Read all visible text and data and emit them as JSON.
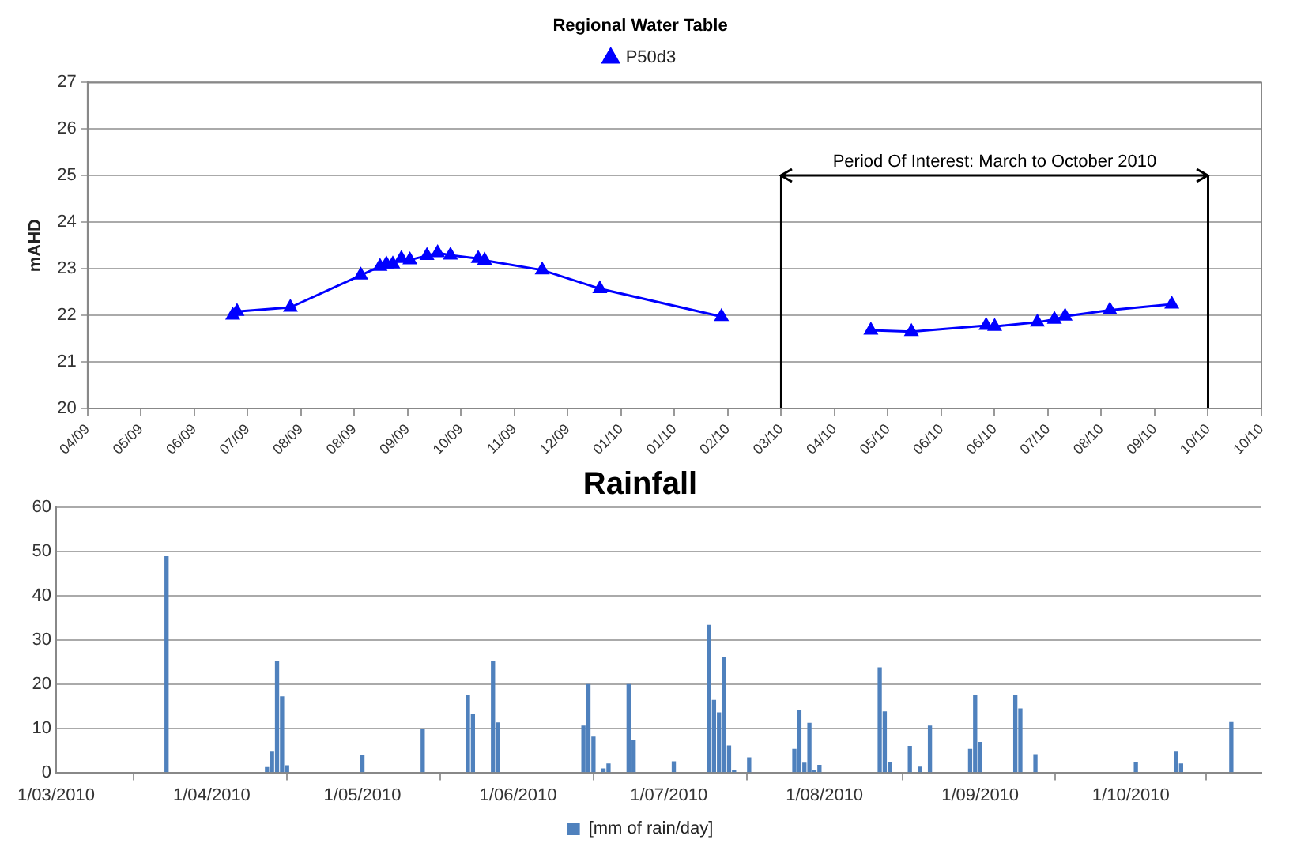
{
  "chart_data": [
    {
      "type": "line",
      "title": "Regional Water Table",
      "ylabel": "mAHD",
      "legend": "top",
      "grid": "y",
      "marker": "triangle",
      "line_style": "solid",
      "x": [
        "2009-07-04",
        "2009-07-06",
        "2009-07-31",
        "2009-09-02",
        "2009-09-11",
        "2009-09-14",
        "2009-09-17",
        "2009-09-21",
        "2009-09-25",
        "2009-10-03",
        "2009-10-08",
        "2009-10-14",
        "2009-10-27",
        "2009-10-30",
        "2009-11-26",
        "2009-12-23",
        "2010-02-18",
        "2010-03-25",
        "2010-04-29",
        "2010-05-18",
        "2010-06-22",
        "2010-06-26",
        "2010-07-16",
        "2010-07-24",
        "2010-07-29",
        "2010-08-19",
        "2010-09-17"
      ],
      "series": [
        {
          "name": "P50d3",
          "color": "#0000ff",
          "values": [
            22.0,
            22.08,
            22.17,
            22.86,
            23.05,
            23.1,
            23.1,
            23.22,
            23.19,
            23.28,
            23.34,
            23.29,
            23.22,
            23.18,
            22.97,
            22.57,
            21.97,
            null,
            21.68,
            21.65,
            21.78,
            21.76,
            21.85,
            21.91,
            21.98,
            22.11,
            22.24
          ]
        }
      ],
      "ylim": [
        20,
        27
      ],
      "yticks": [
        20,
        21,
        22,
        23,
        24,
        25,
        26,
        27
      ],
      "xlim": [
        "2009-04-27",
        "2010-10-29"
      ],
      "xticks": [
        {
          "value": "2009-04-27",
          "label": "04/09"
        },
        {
          "value": "2009-05-22",
          "label": "05/09"
        },
        {
          "value": "2009-06-16",
          "label": "06/09"
        },
        {
          "value": "2009-07-11",
          "label": "07/09"
        },
        {
          "value": "2009-08-05",
          "label": "08/09"
        },
        {
          "value": "2009-08-30",
          "label": "08/09"
        },
        {
          "value": "2009-09-24",
          "label": "09/09"
        },
        {
          "value": "2009-10-19",
          "label": "10/09"
        },
        {
          "value": "2009-11-13",
          "label": "11/09"
        },
        {
          "value": "2009-12-08",
          "label": "12/09"
        },
        {
          "value": "2010-01-02",
          "label": "01/10"
        },
        {
          "value": "2010-01-27",
          "label": "01/10"
        },
        {
          "value": "2010-02-21",
          "label": "02/10"
        },
        {
          "value": "2010-03-18",
          "label": "03/10"
        },
        {
          "value": "2010-04-12",
          "label": "04/10"
        },
        {
          "value": "2010-05-07",
          "label": "05/10"
        },
        {
          "value": "2010-06-01",
          "label": "06/10"
        },
        {
          "value": "2010-06-26",
          "label": "06/10"
        },
        {
          "value": "2010-07-21",
          "label": "07/10"
        },
        {
          "value": "2010-08-15",
          "label": "08/10"
        },
        {
          "value": "2010-09-09",
          "label": "09/10"
        },
        {
          "value": "2010-10-04",
          "label": "10/10"
        },
        {
          "value": "2010-10-29",
          "label": "10/10"
        }
      ],
      "ref_lines": [
        {
          "axis": "x",
          "value": "2010-03-18",
          "color": "#000000"
        },
        {
          "axis": "x",
          "value": "2010-10-04",
          "color": "#000000"
        }
      ],
      "annotations": [
        "Period Of Interest: March to October 2010"
      ]
    },
    {
      "type": "bar",
      "title": "Rainfall",
      "legend": "bottom",
      "grid": "y",
      "x": [
        "2010-03-23",
        "2010-04-12",
        "2010-04-13",
        "2010-04-14",
        "2010-04-15",
        "2010-04-16",
        "2010-05-01",
        "2010-05-13",
        "2010-05-22",
        "2010-05-23",
        "2010-05-27",
        "2010-05-28",
        "2010-06-14",
        "2010-06-15",
        "2010-06-16",
        "2010-06-18",
        "2010-06-19",
        "2010-06-23",
        "2010-06-24",
        "2010-07-02",
        "2010-07-09",
        "2010-07-10",
        "2010-07-11",
        "2010-07-12",
        "2010-07-13",
        "2010-07-14",
        "2010-07-17",
        "2010-07-26",
        "2010-07-27",
        "2010-07-28",
        "2010-07-29",
        "2010-07-30",
        "2010-07-31",
        "2010-08-12",
        "2010-08-13",
        "2010-08-14",
        "2010-08-18",
        "2010-08-20",
        "2010-08-22",
        "2010-08-30",
        "2010-08-31",
        "2010-09-01",
        "2010-09-08",
        "2010-09-09",
        "2010-09-12",
        "2010-10-02",
        "2010-10-10",
        "2010-10-11",
        "2010-10-21"
      ],
      "series": [
        {
          "name": "[mm of rain/day]",
          "color": "#4f81bd",
          "values": [
            48.8,
            1.1,
            4.6,
            25.2,
            17.1,
            1.5,
            3.9,
            9.7,
            17.5,
            13.2,
            25.1,
            11.2,
            10.5,
            19.9,
            8.0,
            0.8,
            1.9,
            19.9,
            7.2,
            2.4,
            33.3,
            16.3,
            13.5,
            26.1,
            6.0,
            0.5,
            3.3,
            5.2,
            14.1,
            2.1,
            11.1,
            0.5,
            1.6,
            23.7,
            13.7,
            2.3,
            5.9,
            1.2,
            10.5,
            5.2,
            17.5,
            6.8,
            17.5,
            14.4,
            4.0,
            2.2,
            4.6,
            1.9,
            11.3
          ]
        }
      ],
      "ylim": [
        0,
        60
      ],
      "yticks": [
        0,
        10,
        20,
        30,
        40,
        50,
        60
      ],
      "xlim": [
        "2010-03-01",
        "2010-10-27"
      ],
      "xticks": [
        {
          "value": "2010-03-01",
          "label": "1/03/2010"
        },
        {
          "value": "2010-04-01",
          "label": "1/04/2010"
        },
        {
          "value": "2010-05-01",
          "label": "1/05/2010"
        },
        {
          "value": "2010-06-01",
          "label": "1/06/2010"
        },
        {
          "value": "2010-07-01",
          "label": "1/07/2010"
        },
        {
          "value": "2010-08-01",
          "label": "1/08/2010"
        },
        {
          "value": "2010-09-01",
          "label": "1/09/2010"
        },
        {
          "value": "2010-10-01",
          "label": "1/10/2010"
        }
      ]
    }
  ]
}
